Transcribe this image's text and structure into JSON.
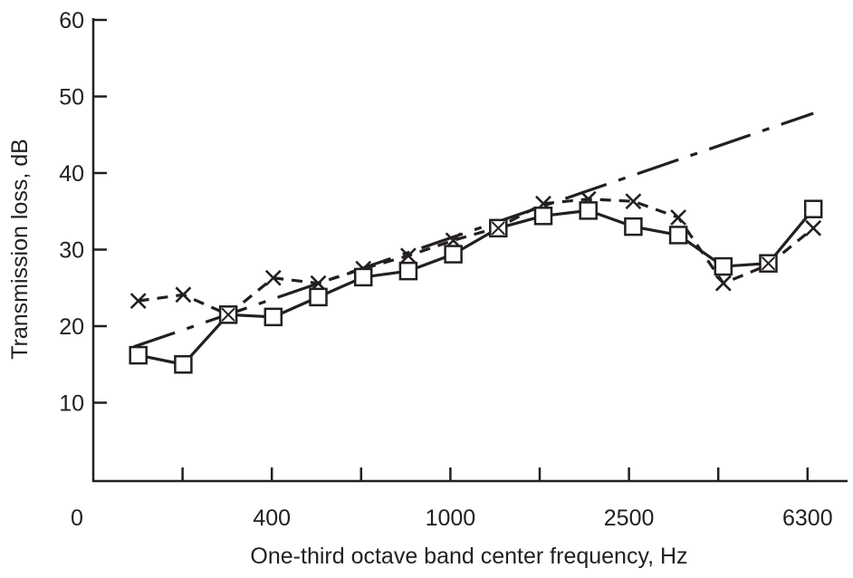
{
  "chart_data": {
    "type": "line",
    "xlabel": "One-third octave band center frequency, Hz",
    "ylabel": "Transmission loss, dB",
    "x_scale": "log (one-third octave bands)",
    "x": [
      200,
      250,
      315,
      400,
      500,
      630,
      800,
      1000,
      1250,
      1600,
      2000,
      2500,
      3150,
      4000,
      5000,
      6300
    ],
    "x_tick_labels": [
      {
        "band": 160,
        "label": "0"
      },
      {
        "band": 400,
        "label": "400"
      },
      {
        "band": 1000,
        "label": "1000"
      },
      {
        "band": 2500,
        "label": "2500"
      },
      {
        "band": 6300,
        "label": "6300"
      }
    ],
    "y_ticks": [
      10,
      20,
      30,
      40,
      50,
      60
    ],
    "ylim": [
      0,
      60
    ],
    "grid": false,
    "series": [
      {
        "marker": "square",
        "line": "solid",
        "values": [
          16.2,
          15.0,
          21.5,
          21.2,
          23.8,
          26.4,
          27.2,
          29.4,
          32.8,
          34.4,
          35.1,
          33.0,
          31.9,
          27.8,
          28.2,
          35.3
        ]
      },
      {
        "marker": "cross",
        "line": "dashed",
        "values": [
          23.3,
          24.1,
          21.5,
          26.3,
          25.6,
          27.5,
          29.2,
          31.2,
          32.9,
          36.0,
          36.6,
          36.3,
          34.2,
          25.6,
          28.0,
          32.8
        ]
      },
      {
        "marker": "none",
        "line": "dash-dot",
        "x": [
          200,
          6300
        ],
        "values": [
          17.3,
          47.8
        ]
      }
    ],
    "colors": {
      "ink": "#231f20",
      "background": "#ffffff"
    }
  }
}
